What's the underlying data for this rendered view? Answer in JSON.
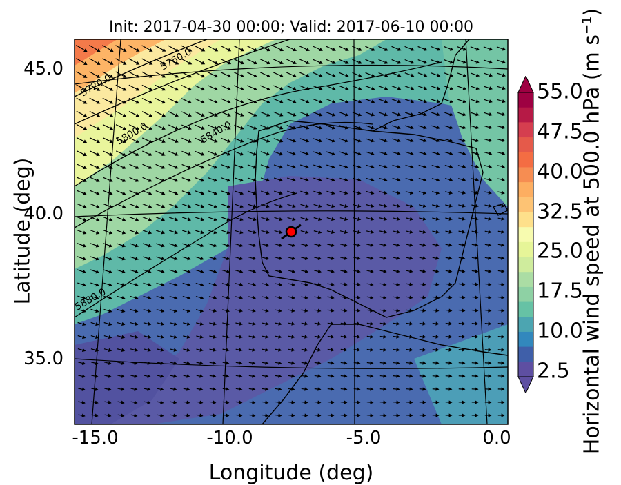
{
  "title": "Init: 2017-04-30 00:00; Valid: 2017-06-10 00:00",
  "x_axis": {
    "label": "Longitude (deg)",
    "ticks": [
      "-15.0",
      "-10.0",
      "-5.0",
      "0.0"
    ],
    "tick_values": [
      -15,
      -10,
      -5,
      0
    ],
    "range": [
      -16,
      0.3
    ]
  },
  "y_axis": {
    "label": "Latitude (deg)",
    "ticks": [
      "45.0",
      "40.0",
      "35.0"
    ],
    "tick_values": [
      45,
      40,
      35
    ],
    "range": [
      32.7,
      46.2
    ]
  },
  "colorbar": {
    "label_main": "Horizontal wind speed at 500.0 hPa (m s",
    "label_sup": "−1",
    "label_end": ")",
    "ticks": [
      "55.0",
      "47.5",
      "40.0",
      "32.5",
      "25.0",
      "17.5",
      "10.0",
      "2.5"
    ],
    "tick_values": [
      55,
      47.5,
      40,
      32.5,
      25,
      17.5,
      10,
      2.5
    ],
    "colors": [
      "#5e4fa2",
      "#3f5fa9",
      "#3288bd",
      "#4ca5b1",
      "#66c2a5",
      "#8ed1a4",
      "#abdda4",
      "#cfec9d",
      "#e6f598",
      "#f7fbaf",
      "#fee08b",
      "#fdc374",
      "#fdae61",
      "#f68d52",
      "#f46d43",
      "#e55a4a",
      "#d53e4f",
      "#b61a46",
      "#9e0142"
    ]
  },
  "contour_labels": [
    "5720.0",
    "5760.0",
    "5800.0",
    "5840.0",
    "5880.0"
  ],
  "marker": {
    "lon": -7.6,
    "lat": 39.3,
    "color": "#ff0000"
  }
}
